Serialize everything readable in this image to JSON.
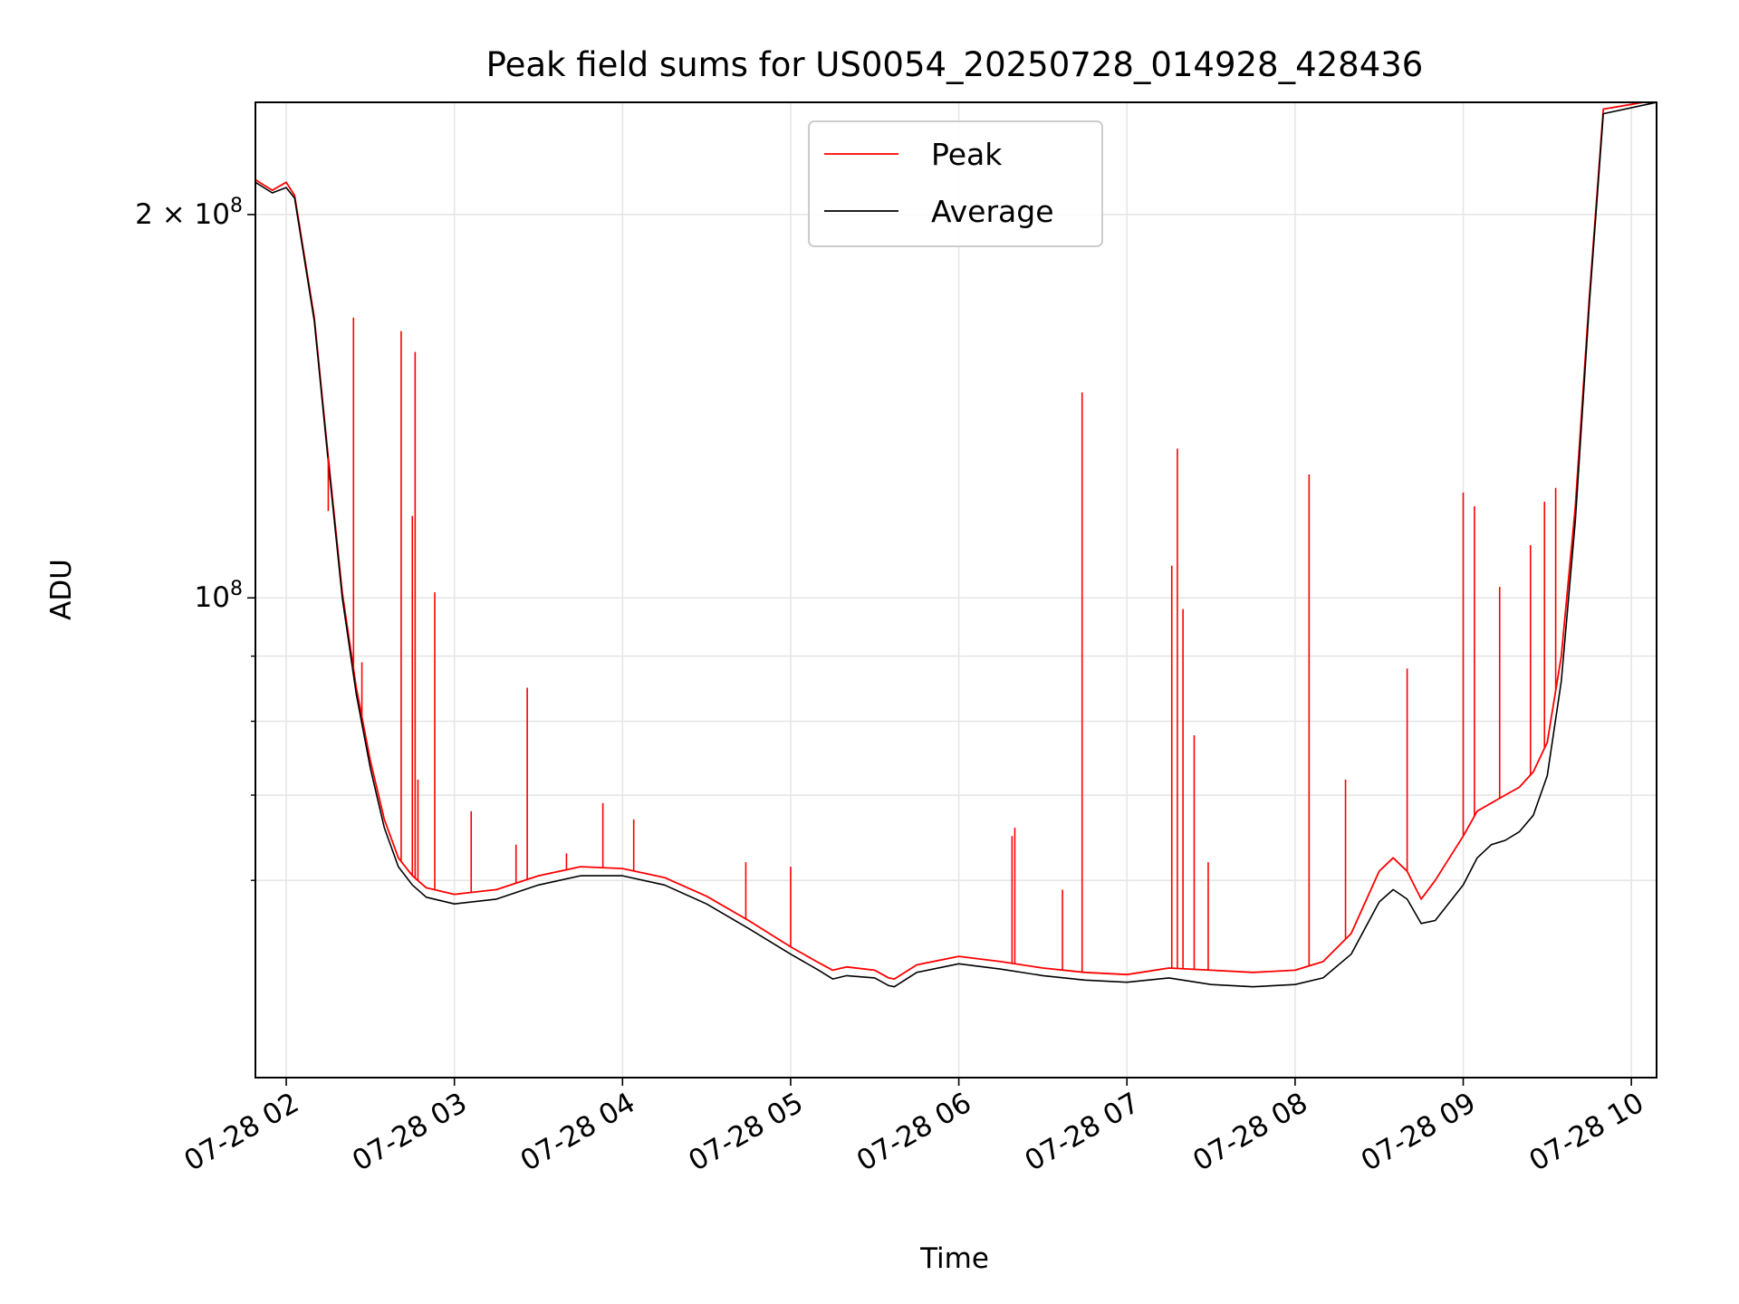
{
  "chart_data": {
    "type": "line",
    "title": "Peak field sums for US0054_20250728_014928_428436",
    "xlabel": "Time",
    "ylabel": "ADU",
    "yscale": "log",
    "ylim": [
      42000000,
      245000000
    ],
    "xlim": [
      "2025-07-28 01:49",
      "2025-07-28 10:09"
    ],
    "x_ticks": [
      "07-28 02",
      "07-28 03",
      "07-28 04",
      "07-28 05",
      "07-28 06",
      "07-28 07",
      "07-28 08",
      "07-28 09",
      "07-28 10"
    ],
    "x_tick_times": [
      "2025-07-28 02:00",
      "2025-07-28 03:00",
      "2025-07-28 04:00",
      "2025-07-28 05:00",
      "2025-07-28 06:00",
      "2025-07-28 07:00",
      "2025-07-28 08:00",
      "2025-07-28 09:00",
      "2025-07-28 10:00"
    ],
    "y_major_ticks": [
      {
        "value": 100000000,
        "base": "10",
        "exp": "8",
        "mantissa": ""
      },
      {
        "value": 200000000,
        "base": "10",
        "exp": "8",
        "mantissa": "2 × "
      }
    ],
    "y_minor_ticks": [
      60000000,
      70000000,
      80000000,
      90000000
    ],
    "grid": true,
    "legend_position": "top-center",
    "series": [
      {
        "name": "Average",
        "color": "#000000",
        "x": [
          "2025-07-28 01:49",
          "2025-07-28 01:55",
          "2025-07-28 02:00",
          "2025-07-28 02:03",
          "2025-07-28 02:10",
          "2025-07-28 02:15",
          "2025-07-28 02:20",
          "2025-07-28 02:25",
          "2025-07-28 02:30",
          "2025-07-28 02:35",
          "2025-07-28 02:40",
          "2025-07-28 02:45",
          "2025-07-28 02:50",
          "2025-07-28 03:00",
          "2025-07-28 03:15",
          "2025-07-28 03:30",
          "2025-07-28 03:45",
          "2025-07-28 04:00",
          "2025-07-28 04:15",
          "2025-07-28 04:30",
          "2025-07-28 04:45",
          "2025-07-28 05:00",
          "2025-07-28 05:10",
          "2025-07-28 05:15",
          "2025-07-28 05:20",
          "2025-07-28 05:30",
          "2025-07-28 05:35",
          "2025-07-28 05:37",
          "2025-07-28 05:45",
          "2025-07-28 06:00",
          "2025-07-28 06:15",
          "2025-07-28 06:30",
          "2025-07-28 06:45",
          "2025-07-28 07:00",
          "2025-07-28 07:15",
          "2025-07-28 07:30",
          "2025-07-28 07:45",
          "2025-07-28 08:00",
          "2025-07-28 08:10",
          "2025-07-28 08:20",
          "2025-07-28 08:30",
          "2025-07-28 08:35",
          "2025-07-28 08:40",
          "2025-07-28 08:45",
          "2025-07-28 08:50",
          "2025-07-28 09:00",
          "2025-07-28 09:05",
          "2025-07-28 09:10",
          "2025-07-28 09:15",
          "2025-07-28 09:20",
          "2025-07-28 09:25",
          "2025-07-28 09:30",
          "2025-07-28 09:35",
          "2025-07-28 09:40",
          "2025-07-28 09:45",
          "2025-07-28 09:50",
          "2025-07-28 10:09"
        ],
        "y": [
          212000000,
          208000000,
          210000000,
          206000000,
          165000000,
          128000000,
          100000000,
          84000000,
          73500000,
          66000000,
          61500000,
          59500000,
          58200000,
          57500000,
          58000000,
          59500000,
          60500000,
          60500000,
          59500000,
          57500000,
          55000000,
          52500000,
          51000000,
          50200000,
          50500000,
          50300000,
          49600000,
          49500000,
          50800000,
          51600000,
          51100000,
          50500000,
          50100000,
          49900000,
          50300000,
          49700000,
          49500000,
          49700000,
          50300000,
          52500000,
          57700000,
          59000000,
          58000000,
          55500000,
          55800000,
          59500000,
          62500000,
          64000000,
          64500000,
          65500000,
          67500000,
          72500000,
          86000000,
          115000000,
          170000000,
          240000000,
          245000000
        ]
      },
      {
        "name": "Peak",
        "color": "#ff0000",
        "x": [
          "2025-07-28 01:49",
          "2025-07-28 01:55",
          "2025-07-28 02:00",
          "2025-07-28 02:03",
          "2025-07-28 02:10",
          "2025-07-28 02:15",
          "2025-07-28 02:20",
          "2025-07-28 02:25",
          "2025-07-28 02:30",
          "2025-07-28 02:35",
          "2025-07-28 02:40",
          "2025-07-28 02:45",
          "2025-07-28 02:50",
          "2025-07-28 03:00",
          "2025-07-28 03:15",
          "2025-07-28 03:30",
          "2025-07-28 03:45",
          "2025-07-28 04:00",
          "2025-07-28 04:15",
          "2025-07-28 04:30",
          "2025-07-28 04:45",
          "2025-07-28 05:00",
          "2025-07-28 05:10",
          "2025-07-28 05:15",
          "2025-07-28 05:20",
          "2025-07-28 05:30",
          "2025-07-28 05:35",
          "2025-07-28 05:37",
          "2025-07-28 05:45",
          "2025-07-28 06:00",
          "2025-07-28 06:15",
          "2025-07-28 06:30",
          "2025-07-28 06:45",
          "2025-07-28 07:00",
          "2025-07-28 07:15",
          "2025-07-28 07:30",
          "2025-07-28 07:45",
          "2025-07-28 08:00",
          "2025-07-28 08:10",
          "2025-07-28 08:20",
          "2025-07-28 08:30",
          "2025-07-28 08:35",
          "2025-07-28 08:40",
          "2025-07-28 08:45",
          "2025-07-28 08:50",
          "2025-07-28 09:00",
          "2025-07-28 09:05",
          "2025-07-28 09:10",
          "2025-07-28 09:15",
          "2025-07-28 09:20",
          "2025-07-28 09:25",
          "2025-07-28 09:30",
          "2025-07-28 09:35",
          "2025-07-28 09:40",
          "2025-07-28 09:45",
          "2025-07-28 09:50",
          "2025-07-28 10:09"
        ],
        "y": [
          213000000,
          209000000,
          212000000,
          207000000,
          166000000,
          129000000,
          101000000,
          85000000,
          74500000,
          67000000,
          62500000,
          60500000,
          59200000,
          58500000,
          59000000,
          60500000,
          61500000,
          61300000,
          60300000,
          58300000,
          55800000,
          53200000,
          51700000,
          51000000,
          51300000,
          51000000,
          50300000,
          50200000,
          51500000,
          52300000,
          51800000,
          51200000,
          50800000,
          50600000,
          51200000,
          51000000,
          50800000,
          51000000,
          51800000,
          54500000,
          61000000,
          62500000,
          61000000,
          58000000,
          60000000,
          65000000,
          68000000,
          69000000,
          70000000,
          71000000,
          73000000,
          77000000,
          90000000,
          118000000,
          172000000,
          242000000,
          246000000
        ]
      }
    ],
    "peak_spikes": [
      {
        "t": "2025-07-28 02:15",
        "v": 117000000
      },
      {
        "t": "2025-07-28 02:24",
        "v": 166000000
      },
      {
        "t": "2025-07-28 02:27",
        "v": 89000000
      },
      {
        "t": "2025-07-28 02:41",
        "v": 162000000
      },
      {
        "t": "2025-07-28 02:45",
        "v": 116000000
      },
      {
        "t": "2025-07-28 02:46",
        "v": 156000000
      },
      {
        "t": "2025-07-28 02:47",
        "v": 72000000
      },
      {
        "t": "2025-07-28 02:53",
        "v": 101000000
      },
      {
        "t": "2025-07-28 03:06",
        "v": 68000000
      },
      {
        "t": "2025-07-28 03:22",
        "v": 64000000
      },
      {
        "t": "2025-07-28 03:26",
        "v": 85000000
      },
      {
        "t": "2025-07-28 03:40",
        "v": 63000000
      },
      {
        "t": "2025-07-28 03:53",
        "v": 69000000
      },
      {
        "t": "2025-07-28 04:04",
        "v": 67000000
      },
      {
        "t": "2025-07-28 04:44",
        "v": 62000000
      },
      {
        "t": "2025-07-28 05:00",
        "v": 61500000
      },
      {
        "t": "2025-07-28 06:19",
        "v": 65000000
      },
      {
        "t": "2025-07-28 06:20",
        "v": 66000000
      },
      {
        "t": "2025-07-28 06:37",
        "v": 59000000
      },
      {
        "t": "2025-07-28 06:44",
        "v": 145000000
      },
      {
        "t": "2025-07-28 07:16",
        "v": 106000000
      },
      {
        "t": "2025-07-28 07:18",
        "v": 131000000
      },
      {
        "t": "2025-07-28 07:20",
        "v": 98000000
      },
      {
        "t": "2025-07-28 07:24",
        "v": 78000000
      },
      {
        "t": "2025-07-28 07:29",
        "v": 62000000
      },
      {
        "t": "2025-07-28 08:05",
        "v": 125000000
      },
      {
        "t": "2025-07-28 08:18",
        "v": 72000000
      },
      {
        "t": "2025-07-28 08:40",
        "v": 88000000
      },
      {
        "t": "2025-07-28 09:00",
        "v": 121000000
      },
      {
        "t": "2025-07-28 09:04",
        "v": 118000000
      },
      {
        "t": "2025-07-28 09:13",
        "v": 102000000
      },
      {
        "t": "2025-07-28 09:24",
        "v": 110000000
      },
      {
        "t": "2025-07-28 09:29",
        "v": 119000000
      },
      {
        "t": "2025-07-28 09:33",
        "v": 122000000
      }
    ]
  }
}
